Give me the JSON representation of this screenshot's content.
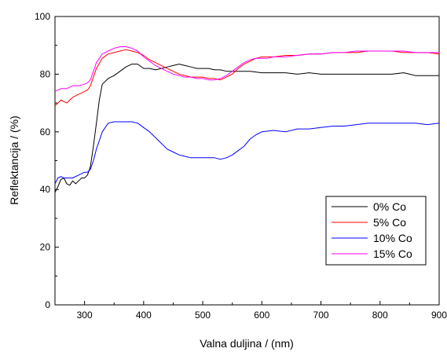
{
  "chart_data": {
    "type": "line",
    "title": "",
    "xlabel": "Valna duljina / (nm)",
    "ylabel": "Reflektancija / (%)",
    "xlim": [
      250,
      900
    ],
    "ylim": [
      0,
      100
    ],
    "x_ticks": [
      300,
      400,
      500,
      600,
      700,
      800,
      900
    ],
    "y_ticks": [
      0,
      20,
      40,
      60,
      80,
      100
    ],
    "grid": false,
    "legend_position": "bottom-right",
    "series": [
      {
        "name": "0% Co",
        "color": "#000000",
        "points": [
          [
            250,
            39
          ],
          [
            255,
            41
          ],
          [
            260,
            43.5
          ],
          [
            265,
            44
          ],
          [
            270,
            42
          ],
          [
            275,
            41.5
          ],
          [
            280,
            43
          ],
          [
            285,
            42
          ],
          [
            290,
            43
          ],
          [
            295,
            44
          ],
          [
            300,
            44
          ],
          [
            305,
            45
          ],
          [
            310,
            48
          ],
          [
            315,
            55
          ],
          [
            320,
            63
          ],
          [
            325,
            71
          ],
          [
            330,
            76.5
          ],
          [
            340,
            78.5
          ],
          [
            350,
            79.5
          ],
          [
            360,
            81
          ],
          [
            370,
            82.5
          ],
          [
            380,
            83.5
          ],
          [
            390,
            83.5
          ],
          [
            400,
            82
          ],
          [
            410,
            82
          ],
          [
            420,
            81.5
          ],
          [
            430,
            82
          ],
          [
            440,
            82.5
          ],
          [
            450,
            83
          ],
          [
            460,
            83.5
          ],
          [
            470,
            83
          ],
          [
            480,
            82.5
          ],
          [
            490,
            82
          ],
          [
            500,
            82
          ],
          [
            510,
            82
          ],
          [
            520,
            81.5
          ],
          [
            530,
            81.5
          ],
          [
            540,
            81
          ],
          [
            550,
            81
          ],
          [
            560,
            81
          ],
          [
            570,
            81
          ],
          [
            580,
            81
          ],
          [
            600,
            80.5
          ],
          [
            620,
            80.5
          ],
          [
            640,
            80.5
          ],
          [
            660,
            80
          ],
          [
            680,
            80.5
          ],
          [
            700,
            80
          ],
          [
            720,
            80
          ],
          [
            740,
            80
          ],
          [
            760,
            80
          ],
          [
            780,
            80
          ],
          [
            800,
            80
          ],
          [
            820,
            80
          ],
          [
            840,
            80.5
          ],
          [
            850,
            80
          ],
          [
            860,
            79.5
          ],
          [
            880,
            79.5
          ],
          [
            900,
            79.5
          ]
        ]
      },
      {
        "name": "5% Co",
        "color": "#ff0000",
        "points": [
          [
            250,
            69
          ],
          [
            255,
            70
          ],
          [
            260,
            71
          ],
          [
            265,
            70.5
          ],
          [
            270,
            70
          ],
          [
            275,
            71
          ],
          [
            280,
            72
          ],
          [
            290,
            73
          ],
          [
            300,
            74
          ],
          [
            305,
            74.5
          ],
          [
            310,
            76
          ],
          [
            315,
            79
          ],
          [
            320,
            82
          ],
          [
            330,
            85.5
          ],
          [
            340,
            87
          ],
          [
            350,
            87.5
          ],
          [
            360,
            88
          ],
          [
            370,
            88.5
          ],
          [
            380,
            88
          ],
          [
            390,
            87.5
          ],
          [
            400,
            86.5
          ],
          [
            410,
            85
          ],
          [
            420,
            84
          ],
          [
            430,
            83
          ],
          [
            440,
            82
          ],
          [
            450,
            81
          ],
          [
            460,
            80
          ],
          [
            470,
            79.5
          ],
          [
            480,
            79
          ],
          [
            490,
            79
          ],
          [
            500,
            79
          ],
          [
            510,
            78.5
          ],
          [
            520,
            78.5
          ],
          [
            530,
            78
          ],
          [
            540,
            79
          ],
          [
            550,
            80
          ],
          [
            560,
            82
          ],
          [
            570,
            83.5
          ],
          [
            580,
            84.5
          ],
          [
            590,
            85.5
          ],
          [
            600,
            86
          ],
          [
            610,
            86
          ],
          [
            620,
            86
          ],
          [
            640,
            86.5
          ],
          [
            660,
            86.5
          ],
          [
            680,
            87
          ],
          [
            700,
            87
          ],
          [
            720,
            87.5
          ],
          [
            740,
            87.5
          ],
          [
            760,
            87.5
          ],
          [
            780,
            88
          ],
          [
            800,
            88
          ],
          [
            820,
            88
          ],
          [
            840,
            87.5
          ],
          [
            860,
            87.5
          ],
          [
            880,
            87.5
          ],
          [
            900,
            87
          ]
        ]
      },
      {
        "name": "10% Co",
        "color": "#0000ff",
        "points": [
          [
            250,
            42
          ],
          [
            255,
            44
          ],
          [
            260,
            44.5
          ],
          [
            265,
            44
          ],
          [
            270,
            44
          ],
          [
            280,
            44
          ],
          [
            290,
            45
          ],
          [
            300,
            46
          ],
          [
            305,
            46
          ],
          [
            310,
            47
          ],
          [
            315,
            50
          ],
          [
            320,
            54
          ],
          [
            330,
            60
          ],
          [
            340,
            63
          ],
          [
            350,
            63.5
          ],
          [
            360,
            63.5
          ],
          [
            370,
            63.5
          ],
          [
            380,
            63.5
          ],
          [
            390,
            63
          ],
          [
            400,
            61.5
          ],
          [
            410,
            60
          ],
          [
            420,
            58
          ],
          [
            430,
            56
          ],
          [
            440,
            54
          ],
          [
            450,
            53
          ],
          [
            460,
            52
          ],
          [
            470,
            51.5
          ],
          [
            480,
            51
          ],
          [
            490,
            51
          ],
          [
            500,
            51
          ],
          [
            510,
            51
          ],
          [
            520,
            51
          ],
          [
            530,
            50.5
          ],
          [
            540,
            51
          ],
          [
            550,
            52
          ],
          [
            560,
            53.5
          ],
          [
            570,
            55
          ],
          [
            580,
            57.5
          ],
          [
            590,
            59
          ],
          [
            600,
            60
          ],
          [
            620,
            60.5
          ],
          [
            640,
            60
          ],
          [
            660,
            61
          ],
          [
            680,
            61
          ],
          [
            700,
            61.5
          ],
          [
            720,
            62
          ],
          [
            740,
            62
          ],
          [
            760,
            62.5
          ],
          [
            780,
            63
          ],
          [
            800,
            63
          ],
          [
            820,
            63
          ],
          [
            840,
            63
          ],
          [
            860,
            63
          ],
          [
            880,
            62.5
          ],
          [
            900,
            63
          ]
        ]
      },
      {
        "name": "15% Co",
        "color": "#ff00ff",
        "points": [
          [
            250,
            74
          ],
          [
            255,
            74.5
          ],
          [
            260,
            75
          ],
          [
            270,
            75
          ],
          [
            280,
            76
          ],
          [
            290,
            76
          ],
          [
            300,
            76.5
          ],
          [
            305,
            77
          ],
          [
            310,
            78
          ],
          [
            315,
            81
          ],
          [
            320,
            84
          ],
          [
            330,
            87
          ],
          [
            340,
            88
          ],
          [
            350,
            89
          ],
          [
            360,
            89.5
          ],
          [
            370,
            89.5
          ],
          [
            380,
            89
          ],
          [
            390,
            88
          ],
          [
            400,
            86
          ],
          [
            410,
            84.5
          ],
          [
            420,
            83
          ],
          [
            430,
            82
          ],
          [
            440,
            81
          ],
          [
            450,
            80
          ],
          [
            460,
            79.5
          ],
          [
            470,
            79
          ],
          [
            480,
            79
          ],
          [
            490,
            78.5
          ],
          [
            500,
            78.5
          ],
          [
            510,
            78
          ],
          [
            520,
            78
          ],
          [
            530,
            78.5
          ],
          [
            540,
            79.5
          ],
          [
            550,
            81
          ],
          [
            560,
            82.5
          ],
          [
            570,
            84
          ],
          [
            580,
            85
          ],
          [
            590,
            85.5
          ],
          [
            600,
            85.5
          ],
          [
            610,
            85.5
          ],
          [
            620,
            86
          ],
          [
            640,
            86
          ],
          [
            660,
            86.5
          ],
          [
            680,
            87
          ],
          [
            700,
            87
          ],
          [
            720,
            87.5
          ],
          [
            740,
            87.5
          ],
          [
            760,
            88
          ],
          [
            780,
            88
          ],
          [
            800,
            88
          ],
          [
            820,
            88
          ],
          [
            840,
            88
          ],
          [
            860,
            87.5
          ],
          [
            880,
            87.5
          ],
          [
            900,
            87.5
          ]
        ]
      }
    ]
  }
}
